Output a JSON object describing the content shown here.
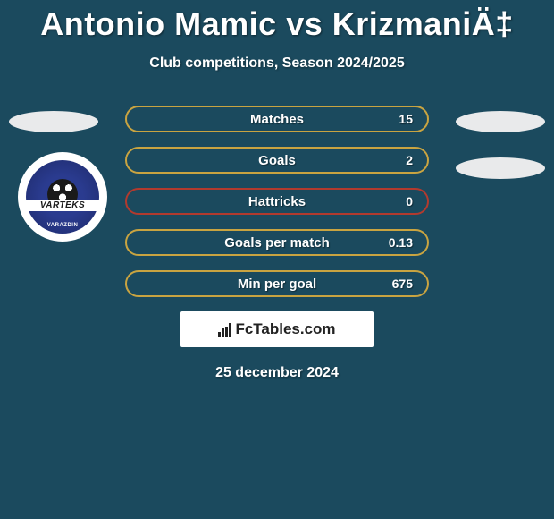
{
  "title": "Antonio Mamic vs KrizmaniÄ‡",
  "subtitle": "Club competitions, Season 2024/2025",
  "date": "25 december 2024",
  "badge": {
    "band_text": "VARTEKS",
    "bottom_text": "VARAZDIN"
  },
  "colors": {
    "background": "#1b4a5e",
    "text": "#ffffff",
    "ellipse_fill": "#e9eaeb",
    "row_border_colors": [
      "#c9a441",
      "#c9a441",
      "#b23a2e",
      "#c9a441",
      "#c9a441"
    ],
    "fctables_bg": "#ffffff",
    "fctables_text": "#222222"
  },
  "stats": [
    {
      "label": "Matches",
      "value": "15"
    },
    {
      "label": "Goals",
      "value": "2"
    },
    {
      "label": "Hattricks",
      "value": "0"
    },
    {
      "label": "Goals per match",
      "value": "0.13"
    },
    {
      "label": "Min per goal",
      "value": "675"
    }
  ],
  "fctables_label": "FcTables.com"
}
